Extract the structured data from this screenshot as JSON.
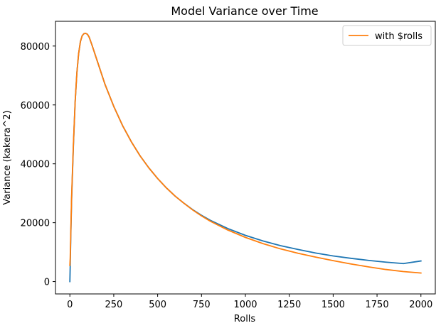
{
  "chart_data": {
    "type": "line",
    "title": "Model Variance over Time",
    "xlabel": "Rolls",
    "ylabel": "Variance (kakera^2)",
    "xlim": [
      -82,
      2082
    ],
    "ylim": [
      -4200,
      88400
    ],
    "x_ticks": [
      0,
      250,
      500,
      750,
      1000,
      1250,
      1500,
      1750,
      2000
    ],
    "x_tick_labels": [
      "0",
      "250",
      "500",
      "750",
      "1000",
      "1250",
      "1500",
      "1750",
      "2000"
    ],
    "y_ticks": [
      0,
      20000,
      40000,
      60000,
      80000
    ],
    "y_tick_labels": [
      "0",
      "20000",
      "40000",
      "60000",
      "80000"
    ],
    "grid": false,
    "legend_position": "top-right",
    "series": [
      {
        "name": "",
        "color": "#1f77b4",
        "x": [
          0,
          2,
          5,
          10,
          20,
          30,
          40,
          50,
          60,
          70,
          80,
          90,
          100,
          110,
          125,
          150,
          175,
          200,
          250,
          300,
          350,
          400,
          450,
          500,
          550,
          600,
          650,
          700,
          750,
          800,
          900,
          1000,
          1100,
          1200,
          1300,
          1400,
          1500,
          1600,
          1700,
          1800,
          1900,
          2000
        ],
        "y": [
          0,
          5500,
          15000,
          28000,
          46000,
          61000,
          71000,
          77500,
          81500,
          83500,
          84200,
          84300,
          84000,
          83000,
          80500,
          76000,
          71500,
          67000,
          59500,
          53000,
          47500,
          42700,
          38600,
          35000,
          31800,
          29000,
          26600,
          24400,
          22500,
          20800,
          18000,
          15700,
          13800,
          12200,
          10900,
          9700,
          8700,
          7900,
          7200,
          6600,
          6100,
          7000
        ]
      },
      {
        "name": "with $rolls",
        "color": "#ff7f0e",
        "x": [
          0,
          2,
          5,
          10,
          20,
          30,
          40,
          50,
          60,
          70,
          80,
          90,
          100,
          110,
          125,
          150,
          175,
          200,
          250,
          300,
          350,
          400,
          450,
          500,
          550,
          600,
          650,
          700,
          750,
          800,
          900,
          1000,
          1100,
          1200,
          1300,
          1400,
          1500,
          1600,
          1700,
          1800,
          1900,
          2000
        ],
        "y": [
          5500,
          8000,
          16000,
          29000,
          46500,
          61000,
          71000,
          77500,
          81500,
          83500,
          84200,
          84300,
          84000,
          83000,
          80500,
          76000,
          71500,
          67000,
          59500,
          53000,
          47500,
          42700,
          38600,
          35000,
          31800,
          29000,
          26600,
          24300,
          22300,
          20500,
          17500,
          15000,
          12900,
          11100,
          9600,
          8300,
          7100,
          6000,
          5000,
          4100,
          3400,
          2900
        ]
      }
    ]
  }
}
